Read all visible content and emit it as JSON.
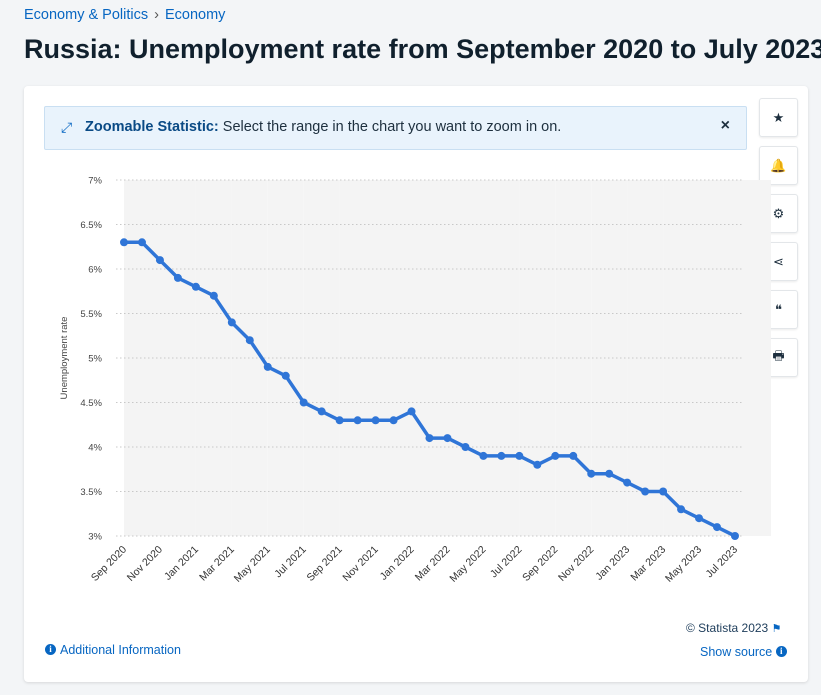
{
  "breadcrumb": {
    "level1": "Economy & Politics",
    "separator": "›",
    "level2": "Economy"
  },
  "page_title": "Russia: Unemployment rate from September 2020 to July 2023",
  "zoom_banner": {
    "bold_label": "Zoomable Statistic:",
    "text": "Select the range in the chart you want to zoom in on.",
    "close_symbol": "×"
  },
  "toolbar": {
    "items": [
      {
        "icon": "star-icon",
        "glyph": "★"
      },
      {
        "icon": "bell-icon",
        "glyph": "🔔"
      },
      {
        "icon": "gear-icon",
        "glyph": "⚙"
      },
      {
        "icon": "share-icon",
        "glyph": "⋖"
      },
      {
        "icon": "quote-icon",
        "glyph": "❝"
      },
      {
        "icon": "print-icon",
        "glyph": "🖶"
      }
    ]
  },
  "footer": {
    "copyright": "© Statista 2023",
    "additional_info": "Additional Information",
    "show_source": "Show source"
  },
  "colors": {
    "line": "#2f75d7",
    "accent": "#0766c2",
    "band": "#f4f4f4"
  },
  "chart_data": {
    "type": "line",
    "ylabel": "Unemployment rate",
    "ylim": [
      3,
      7
    ],
    "yticks": [
      "3%",
      "3.5%",
      "4%",
      "4.5%",
      "5%",
      "5.5%",
      "6%",
      "6.5%",
      "7%"
    ],
    "ytick_values": [
      3,
      3.5,
      4,
      4.5,
      5,
      5.5,
      6,
      6.5,
      7
    ],
    "x_tick_labels": [
      "Sep 2020",
      "Nov 2020",
      "Jan 2021",
      "Mar 2021",
      "May 2021",
      "Jul 2021",
      "Sep 2021",
      "Nov 2021",
      "Jan 2022",
      "Mar 2022",
      "May 2022",
      "Jul 2022",
      "Sep 2022",
      "Nov 2022",
      "Jan 2023",
      "Mar 2023",
      "May 2023",
      "Jul 2023"
    ],
    "series": [
      {
        "x": [
          "Sep 2020",
          "Oct 2020",
          "Nov 2020",
          "Dec 2020",
          "Jan 2021",
          "Feb 2021",
          "Mar 2021",
          "Apr 2021",
          "May 2021",
          "Jun 2021",
          "Jul 2021",
          "Aug 2021",
          "Sep 2021",
          "Oct 2021",
          "Nov 2021",
          "Dec 2021",
          "Jan 2022",
          "Feb 2022",
          "Mar 2022",
          "Apr 2022",
          "May 2022",
          "Jun 2022",
          "Jul 2022",
          "Aug 2022",
          "Sep 2022",
          "Oct 2022",
          "Nov 2022",
          "Dec 2022",
          "Jan 2023",
          "Feb 2023",
          "Mar 2023",
          "Apr 2023",
          "May 2023",
          "Jun 2023",
          "Jul 2023"
        ],
        "values": [
          6.3,
          6.3,
          6.1,
          5.9,
          5.8,
          5.7,
          5.4,
          5.2,
          4.9,
          4.8,
          4.5,
          4.4,
          4.3,
          4.3,
          4.3,
          4.3,
          4.4,
          4.1,
          4.1,
          4.0,
          3.9,
          3.9,
          3.9,
          3.8,
          3.9,
          3.9,
          3.7,
          3.7,
          3.6,
          3.5,
          3.5,
          3.3,
          3.2,
          3.1,
          3.0
        ]
      }
    ],
    "grid": "horizontal-dotted",
    "legend": "none"
  }
}
